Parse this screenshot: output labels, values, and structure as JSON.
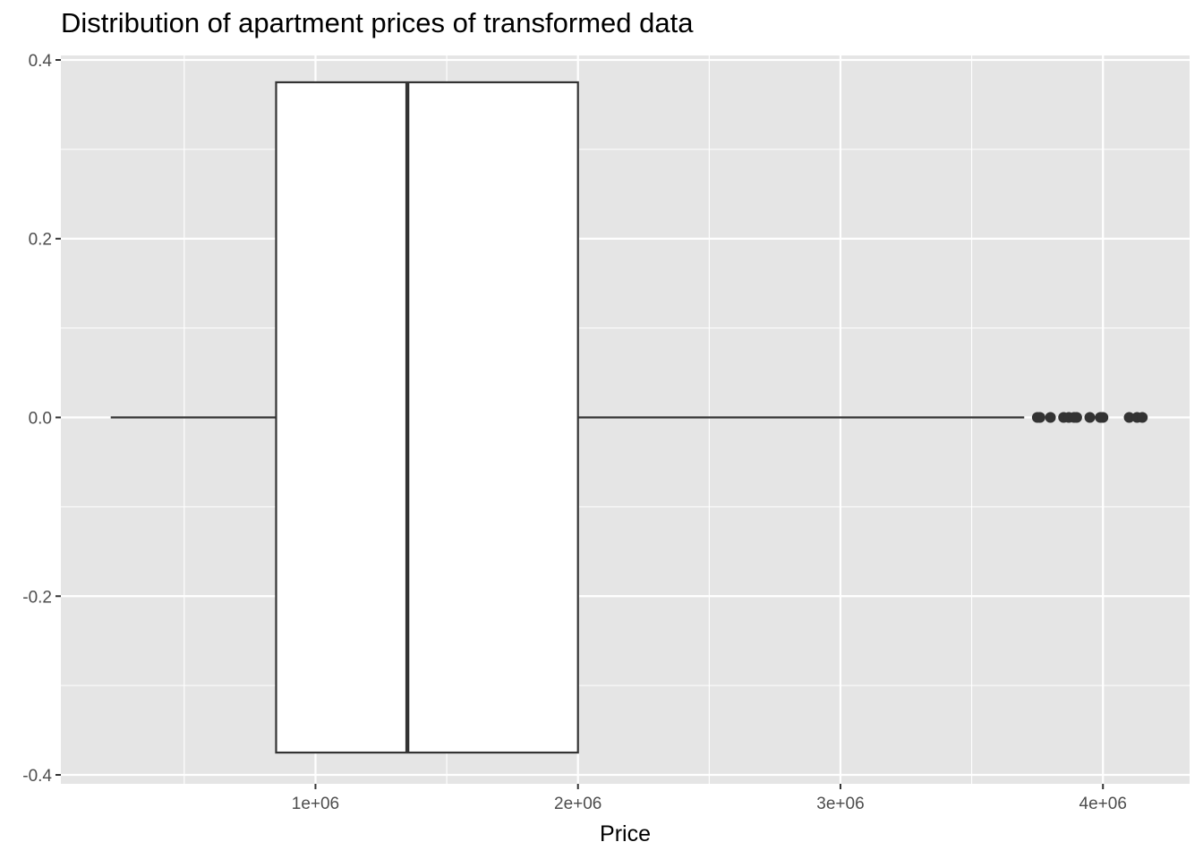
{
  "chart_data": {
    "type": "boxplot",
    "title": "Distribution of apartment prices of transformed data",
    "xlabel": "Price",
    "ylabel": "",
    "xlim": [
      30000,
      4330000
    ],
    "ylim": [
      -0.41,
      0.405
    ],
    "x_ticks": [
      {
        "value": 1000000,
        "label": "1e+06"
      },
      {
        "value": 2000000,
        "label": "2e+06"
      },
      {
        "value": 3000000,
        "label": "3e+06"
      },
      {
        "value": 4000000,
        "label": "4e+06"
      }
    ],
    "y_ticks": [
      {
        "value": 0.4,
        "label": "0.4"
      },
      {
        "value": 0.2,
        "label": "0.2"
      },
      {
        "value": 0.0,
        "label": "0.0"
      },
      {
        "value": -0.2,
        "label": "-0.2"
      },
      {
        "value": -0.4,
        "label": "-0.4"
      }
    ],
    "grid": true,
    "box": {
      "y_center": 0.0,
      "half_width": 0.375,
      "whisker_low": 220000,
      "q1": 850000,
      "median": 1350000,
      "q3": 2000000,
      "whisker_high": 3700000
    },
    "outliers": [
      3750000,
      3760000,
      3800000,
      3850000,
      3870000,
      3890000,
      3900000,
      3950000,
      3990000,
      4000000,
      4100000,
      4130000,
      4150000
    ],
    "colors": {
      "panel_background": "#e5e5e5",
      "grid": "#ffffff",
      "box_fill": "#ffffff",
      "box_stroke": "#333333",
      "outlier": "#333333",
      "tick_text": "#4d4d4d"
    }
  }
}
